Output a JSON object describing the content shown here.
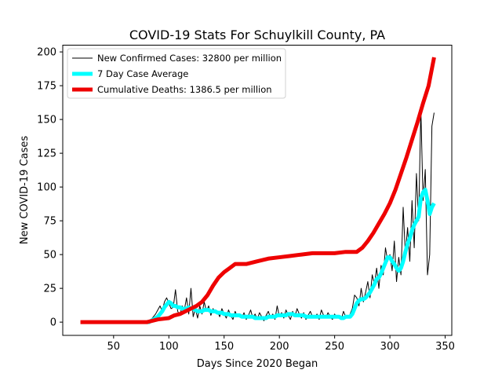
{
  "chart_data": {
    "type": "line",
    "title": "COVID-19 Stats For Schuylkill County, PA",
    "xlabel": "Days Since 2020 Began",
    "ylabel": "New COVID-19 Cases",
    "xlim": [
      4,
      356
    ],
    "ylim": [
      -9.8,
      205
    ],
    "x_ticks": [
      50,
      100,
      150,
      200,
      250,
      300,
      350
    ],
    "y_ticks": [
      0,
      25,
      50,
      75,
      100,
      125,
      150,
      175,
      200
    ],
    "grid": false,
    "legend_position": "top-left",
    "series": [
      {
        "name": "New Confirmed Cases: 32800 per million",
        "color": "#000000",
        "line_width": 1,
        "x": [
          80,
          82,
          84,
          86,
          88,
          90,
          92,
          94,
          96,
          98,
          100,
          102,
          104,
          106,
          108,
          110,
          112,
          114,
          116,
          118,
          120,
          122,
          124,
          126,
          128,
          130,
          132,
          134,
          136,
          138,
          140,
          142,
          144,
          146,
          148,
          150,
          152,
          154,
          156,
          158,
          160,
          162,
          164,
          166,
          168,
          170,
          172,
          174,
          176,
          178,
          180,
          182,
          184,
          186,
          188,
          190,
          192,
          194,
          196,
          198,
          200,
          202,
          204,
          206,
          208,
          210,
          212,
          214,
          216,
          218,
          220,
          222,
          224,
          226,
          228,
          230,
          232,
          234,
          236,
          238,
          240,
          242,
          244,
          246,
          248,
          250,
          252,
          254,
          256,
          258,
          260,
          262,
          264,
          266,
          268,
          270,
          272,
          274,
          276,
          278,
          280,
          282,
          284,
          286,
          288,
          290,
          292,
          294,
          296,
          298,
          300,
          302,
          304,
          306,
          308,
          310,
          312,
          314,
          316,
          318,
          320,
          322,
          324,
          326,
          328,
          330,
          332,
          334,
          336,
          338,
          340
        ],
        "values": [
          0,
          1,
          2,
          4,
          6,
          9,
          12,
          8,
          15,
          18,
          14,
          10,
          11,
          24,
          8,
          5,
          12,
          9,
          18,
          6,
          25,
          4,
          10,
          3,
          12,
          6,
          15,
          8,
          12,
          5,
          10,
          7,
          8,
          4,
          10,
          6,
          3,
          9,
          5,
          2,
          8,
          4,
          6,
          3,
          7,
          2,
          5,
          9,
          3,
          6,
          2,
          7,
          4,
          1,
          5,
          8,
          3,
          6,
          2,
          12,
          4,
          7,
          3,
          9,
          5,
          2,
          8,
          4,
          10,
          6,
          3,
          7,
          2,
          5,
          8,
          4,
          3,
          6,
          2,
          9,
          5,
          3,
          7,
          4,
          2,
          6,
          3,
          5,
          2,
          8,
          4,
          3,
          6,
          10,
          20,
          18,
          12,
          25,
          15,
          22,
          30,
          18,
          35,
          28,
          40,
          25,
          42,
          35,
          55,
          45,
          50,
          38,
          60,
          30,
          48,
          35,
          85,
          50,
          70,
          45,
          90,
          55,
          110,
          75,
          158,
          90,
          113,
          35,
          50,
          145,
          155
        ]
      },
      {
        "name": "7 Day Case Average",
        "color": "#00ffff",
        "line_width": 5,
        "x": [
          80,
          82,
          84,
          86,
          88,
          90,
          92,
          94,
          96,
          98,
          100,
          102,
          104,
          106,
          108,
          110,
          112,
          114,
          116,
          118,
          120,
          122,
          124,
          126,
          128,
          130,
          132,
          134,
          136,
          138,
          140,
          142,
          144,
          146,
          148,
          150,
          152,
          154,
          156,
          158,
          160,
          162,
          164,
          166,
          168,
          170,
          172,
          174,
          176,
          178,
          180,
          182,
          184,
          186,
          188,
          190,
          192,
          194,
          196,
          198,
          200,
          202,
          204,
          206,
          208,
          210,
          212,
          214,
          216,
          218,
          220,
          222,
          224,
          226,
          228,
          230,
          232,
          234,
          236,
          238,
          240,
          242,
          244,
          246,
          248,
          250,
          252,
          254,
          256,
          258,
          260,
          262,
          264,
          266,
          268,
          270,
          272,
          274,
          276,
          278,
          280,
          282,
          284,
          286,
          288,
          290,
          292,
          294,
          296,
          298,
          300,
          302,
          304,
          306,
          308,
          310,
          312,
          314,
          316,
          318,
          320,
          322,
          324,
          326,
          328,
          330,
          332,
          334,
          336,
          338,
          340
        ],
        "values": [
          0,
          0,
          1,
          2,
          3,
          4,
          6,
          8,
          11,
          13,
          15,
          14,
          12,
          12,
          11,
          11,
          10,
          10,
          10,
          11,
          10,
          10,
          9,
          8,
          8,
          8,
          9,
          9,
          9,
          8,
          8,
          8,
          7,
          7,
          7,
          6,
          6,
          6,
          5,
          5,
          5,
          5,
          5,
          4,
          4,
          4,
          4,
          4,
          4,
          3,
          3,
          3,
          3,
          3,
          3,
          4,
          4,
          4,
          4,
          5,
          5,
          5,
          5,
          5,
          6,
          6,
          6,
          5,
          5,
          5,
          5,
          5,
          4,
          4,
          4,
          4,
          4,
          4,
          4,
          4,
          4,
          4,
          4,
          4,
          4,
          4,
          4,
          4,
          3,
          3,
          4,
          4,
          4,
          6,
          10,
          14,
          16,
          17,
          17,
          18,
          20,
          22,
          25,
          28,
          32,
          33,
          36,
          40,
          44,
          48,
          48,
          45,
          43,
          40,
          38,
          40,
          45,
          52,
          58,
          62,
          68,
          72,
          75,
          78,
          92,
          96,
          98,
          90,
          80,
          85,
          88
        ]
      },
      {
        "name": "Cumulative Deaths: 1386.5 per million",
        "color": "#ee0000",
        "line_width": 5,
        "x": [
          20,
          40,
          60,
          80,
          90,
          100,
          105,
          110,
          115,
          120,
          125,
          130,
          135,
          140,
          145,
          150,
          155,
          160,
          165,
          170,
          180,
          190,
          200,
          210,
          220,
          230,
          240,
          250,
          260,
          270,
          275,
          280,
          285,
          290,
          295,
          300,
          305,
          310,
          315,
          320,
          325,
          330,
          335,
          340
        ],
        "values": [
          0,
          0,
          0,
          0,
          2,
          3,
          5,
          6,
          8,
          10,
          12,
          15,
          20,
          27,
          33,
          37,
          40,
          43,
          43,
          43,
          45,
          47,
          48,
          49,
          50,
          51,
          51,
          51,
          52,
          52,
          55,
          60,
          66,
          73,
          80,
          88,
          98,
          110,
          122,
          135,
          148,
          162,
          175,
          196
        ]
      }
    ]
  }
}
